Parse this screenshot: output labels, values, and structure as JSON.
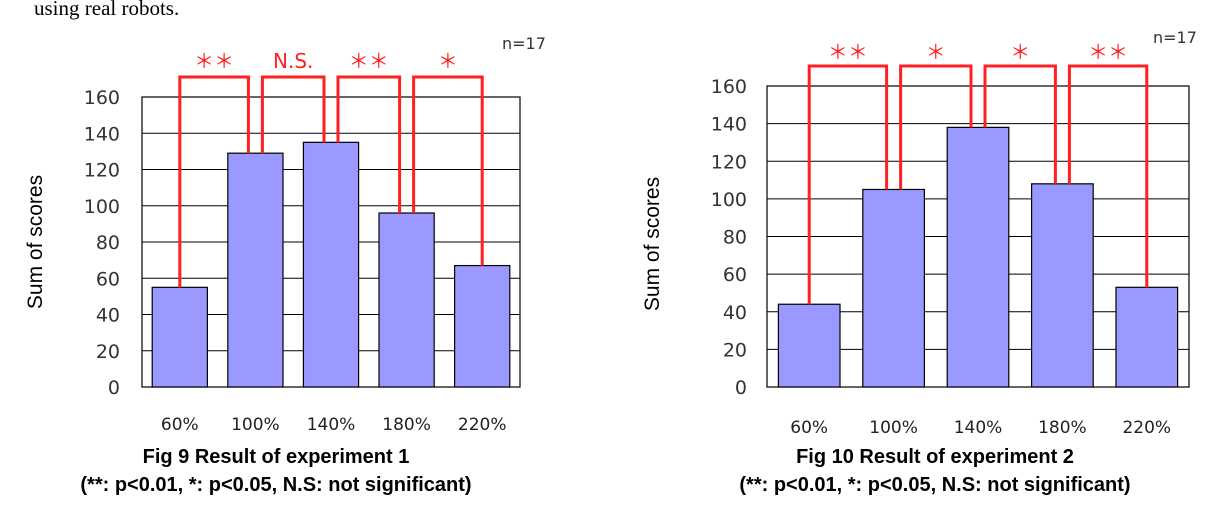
{
  "page": {
    "top_text": "using real robots."
  },
  "chart_data": [
    {
      "type": "bar",
      "categories": [
        "60%",
        "100%",
        "140%",
        "180%",
        "220%"
      ],
      "values": [
        55,
        129,
        135,
        96,
        67
      ],
      "ylabel": "Sum of scores",
      "ylim": [
        0,
        160
      ],
      "yticks": [
        0,
        20,
        40,
        60,
        80,
        100,
        120,
        140,
        160
      ],
      "grid": true,
      "sample_size": "n=17",
      "caption_title": "Fig 9 Result of experiment 1",
      "caption_note": "(**: p<0.01, *: p<0.05, N.S: not significant)",
      "significance": [
        {
          "from": 0,
          "to": 1,
          "label": "＊＊"
        },
        {
          "from": 1,
          "to": 2,
          "label": "N.S."
        },
        {
          "from": 2,
          "to": 3,
          "label": "＊＊"
        },
        {
          "from": 3,
          "to": 4,
          "label": "＊"
        }
      ],
      "colors": {
        "bar": "#9999ff",
        "significance": "#ff2020"
      }
    },
    {
      "type": "bar",
      "categories": [
        "60%",
        "100%",
        "140%",
        "180%",
        "220%"
      ],
      "values": [
        44,
        105,
        138,
        108,
        53
      ],
      "ylabel": "Sum of scores",
      "ylim": [
        0,
        160
      ],
      "yticks": [
        0,
        20,
        40,
        60,
        80,
        100,
        120,
        140,
        160
      ],
      "grid": true,
      "sample_size": "n=17",
      "caption_title": "Fig 10 Result of experiment 2",
      "caption_note": "(**: p<0.01, *: p<0.05, N.S: not significant)",
      "significance": [
        {
          "from": 0,
          "to": 1,
          "label": "＊＊"
        },
        {
          "from": 1,
          "to": 2,
          "label": "＊"
        },
        {
          "from": 2,
          "to": 3,
          "label": "＊"
        },
        {
          "from": 3,
          "to": 4,
          "label": "＊＊"
        }
      ],
      "colors": {
        "bar": "#9999ff",
        "significance": "#ff2020"
      }
    }
  ]
}
